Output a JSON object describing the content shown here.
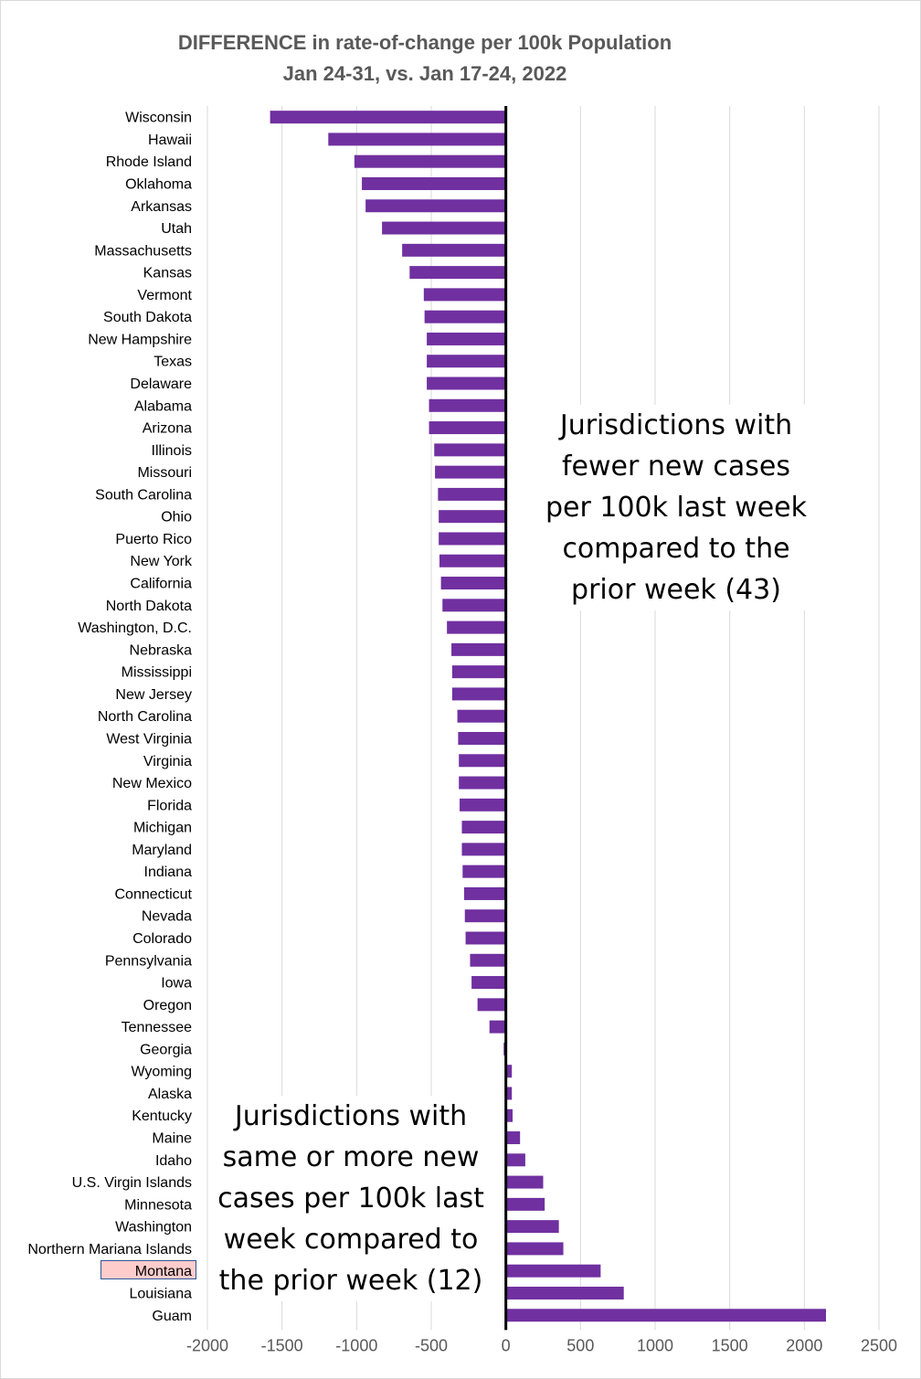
{
  "chart_data": {
    "type": "bar",
    "orientation": "horizontal",
    "title": "DIFFERENCE in rate-of-change per 100k Population",
    "subtitle": "Jan 24-31, vs. Jan 17-24, 2022",
    "xlim": [
      -2000,
      2500
    ],
    "xticks": [
      "-2000",
      "-1500",
      "-1000",
      "-500",
      "0",
      "500",
      "1000",
      "1500",
      "2000",
      "2500"
    ],
    "xtick_values": [
      -2000,
      -1500,
      -1000,
      -500,
      0,
      500,
      1000,
      1500,
      2000,
      2500
    ],
    "grid": "vertical",
    "bar_color": "#7030a0",
    "zero_line_color": "#000000",
    "highlight_category": "Montana",
    "highlight_fill": "#ffcccc",
    "highlight_border": "#2f5597",
    "categories": [
      "Wisconsin",
      "Hawaii",
      "Rhode Island",
      "Oklahoma",
      "Arkansas",
      "Utah",
      "Massachusetts",
      "Kansas",
      "Vermont",
      "South Dakota",
      "New Hampshire",
      "Texas",
      "Delaware",
      "Alabama",
      "Arizona",
      "Illinois",
      "Missouri",
      "South Carolina",
      "Ohio",
      "Puerto Rico",
      "New York",
      "California",
      "North Dakota",
      "Washington, D.C.",
      "Nebraska",
      "Mississippi",
      "New Jersey",
      "North Carolina",
      "West Virginia",
      "Virginia",
      "New Mexico",
      "Florida",
      "Michigan",
      "Maryland",
      "Indiana",
      "Connecticut",
      "Nevada",
      "Colorado",
      "Pennsylvania",
      "Iowa",
      "Oregon",
      "Tennessee",
      "Georgia",
      "Wyoming",
      "Alaska",
      "Kentucky",
      "Maine",
      "Idaho",
      "U.S. Virgin Islands",
      "Minnesota",
      "Washington",
      "Northern Mariana Islands",
      "Montana",
      "Louisiana",
      "Guam"
    ],
    "values": [
      -1580,
      -1190,
      -1015,
      -965,
      -940,
      -830,
      -695,
      -645,
      -550,
      -545,
      -530,
      -530,
      -530,
      -515,
      -515,
      -480,
      -475,
      -455,
      -450,
      -450,
      -445,
      -435,
      -425,
      -395,
      -365,
      -360,
      -360,
      -325,
      -320,
      -315,
      -315,
      -310,
      -295,
      -295,
      -290,
      -280,
      -275,
      -270,
      -240,
      -230,
      -190,
      -110,
      -15,
      40,
      40,
      45,
      95,
      130,
      250,
      260,
      355,
      385,
      635,
      790,
      2145
    ]
  },
  "annotations": {
    "fewer": "Jurisdictions with\nfewer new cases\nper 100k last week\ncompared to the\nprior week (43)",
    "more": "Jurisdictions with\nsame or more new\ncases per 100k last\nweek compared to\nthe prior week (12)"
  }
}
